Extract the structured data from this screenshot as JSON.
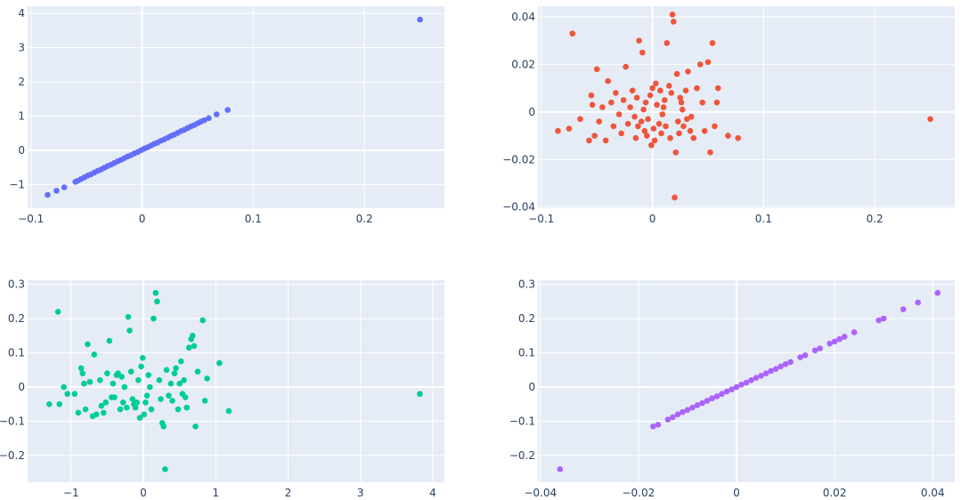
{
  "chart_data": [
    {
      "type": "scatter",
      "color": "#636efa",
      "xlim": [
        -0.103,
        0.272
      ],
      "ylim": [
        -1.69,
        4.21
      ],
      "x_ticks": [
        {
          "value": -0.1,
          "label": "−0.1"
        },
        {
          "value": 0,
          "label": "0"
        },
        {
          "value": 0.1,
          "label": "0.1"
        },
        {
          "value": 0.2,
          "label": "0.2"
        }
      ],
      "y_ticks": [
        {
          "value": -1,
          "label": "−1"
        },
        {
          "value": 0,
          "label": "0"
        },
        {
          "value": 1,
          "label": "1"
        },
        {
          "value": 2,
          "label": "2"
        },
        {
          "value": 3,
          "label": "3"
        },
        {
          "value": 4,
          "label": "4"
        }
      ],
      "x": [
        -0.085,
        -0.077,
        -0.07,
        -0.06,
        -0.058,
        -0.055,
        -0.052,
        -0.049,
        -0.046,
        -0.043,
        -0.04,
        -0.037,
        -0.034,
        -0.031,
        -0.028,
        -0.025,
        -0.022,
        -0.019,
        -0.016,
        -0.013,
        -0.01,
        -0.007,
        -0.004,
        -0.001,
        0.002,
        0.005,
        0.008,
        0.011,
        0.014,
        0.017,
        0.02,
        0.023,
        0.026,
        0.029,
        0.032,
        0.035,
        0.038,
        0.041,
        0.044,
        0.047,
        0.05,
        0.053,
        0.056,
        0.06,
        0.067,
        0.077,
        0.25
      ],
      "y": [
        -1.3,
        -1.18,
        -1.08,
        -0.92,
        -0.89,
        -0.84,
        -0.79,
        -0.74,
        -0.7,
        -0.65,
        -0.6,
        -0.56,
        -0.51,
        -0.46,
        -0.42,
        -0.37,
        -0.32,
        -0.28,
        -0.23,
        -0.18,
        -0.14,
        -0.09,
        -0.05,
        0.0,
        0.05,
        0.09,
        0.14,
        0.19,
        0.23,
        0.28,
        0.32,
        0.37,
        0.42,
        0.46,
        0.51,
        0.56,
        0.6,
        0.65,
        0.7,
        0.74,
        0.79,
        0.84,
        0.88,
        0.94,
        1.05,
        1.18,
        3.82
      ]
    },
    {
      "type": "scatter",
      "color": "#ef553b",
      "xlim": [
        -0.103,
        0.272
      ],
      "ylim": [
        -0.0405,
        0.0445
      ],
      "x_ticks": [
        {
          "value": -0.1,
          "label": "−0.1"
        },
        {
          "value": 0,
          "label": "0"
        },
        {
          "value": 0.1,
          "label": "0.1"
        },
        {
          "value": 0.2,
          "label": "0.2"
        }
      ],
      "y_ticks": [
        {
          "value": -0.04,
          "label": "−0.04"
        },
        {
          "value": -0.02,
          "label": "−0.02"
        },
        {
          "value": 0,
          "label": "0"
        },
        {
          "value": 0.02,
          "label": "0.02"
        },
        {
          "value": 0.04,
          "label": "0.04"
        }
      ],
      "x": [
        -0.085,
        -0.075,
        -0.072,
        -0.065,
        -0.057,
        -0.055,
        -0.054,
        -0.052,
        -0.05,
        -0.048,
        -0.045,
        -0.042,
        -0.04,
        -0.037,
        -0.035,
        -0.033,
        -0.03,
        -0.028,
        -0.026,
        -0.024,
        -0.022,
        -0.02,
        -0.018,
        -0.016,
        -0.015,
        -0.014,
        -0.013,
        -0.012,
        -0.01,
        -0.009,
        -0.008,
        -0.007,
        -0.006,
        -0.005,
        -0.004,
        -0.002,
        -0.001,
        0.0,
        0.001,
        0.002,
        0.003,
        0.004,
        0.006,
        0.007,
        0.008,
        0.009,
        0.01,
        0.011,
        0.012,
        0.013,
        0.015,
        0.016,
        0.017,
        0.018,
        0.019,
        0.02,
        0.021,
        0.022,
        0.023,
        0.024,
        0.025,
        0.026,
        0.027,
        0.028,
        0.03,
        0.031,
        0.032,
        0.034,
        0.035,
        0.037,
        0.04,
        0.043,
        0.045,
        0.047,
        0.05,
        0.052,
        0.054,
        0.056,
        0.058,
        0.059,
        0.068,
        0.077,
        0.25
      ],
      "y": [
        -0.008,
        -0.007,
        0.033,
        -0.003,
        -0.012,
        0.007,
        0.003,
        -0.01,
        0.018,
        -0.004,
        0.002,
        -0.012,
        0.013,
        0.004,
        -0.006,
        0.008,
        -0.001,
        -0.009,
        0.005,
        0.019,
        -0.005,
        0.002,
        0.009,
        -0.002,
        -0.011,
        0.006,
        -0.006,
        0.03,
        -0.004,
        0.025,
        0.001,
        -0.008,
        0.004,
        -0.01,
        -0.003,
        0.007,
        -0.014,
        0.01,
        -0.007,
        -0.012,
        0.012,
        0.003,
        -0.005,
        0.009,
        -0.009,
        -0.001,
        0.002,
        0.005,
        -0.006,
        0.029,
        0.011,
        -0.011,
        0.008,
        0.041,
        0.038,
        -0.036,
        -0.017,
        0.016,
        -0.004,
        -0.009,
        0.006,
        0.004,
        0.001,
        -0.006,
        0.009,
        -0.003,
        0.017,
        -0.008,
        -0.002,
        -0.011,
        0.01,
        0.02,
        0.004,
        -0.008,
        0.021,
        -0.017,
        0.029,
        -0.006,
        0.004,
        0.01,
        -0.01,
        -0.011,
        -0.003
      ]
    },
    {
      "type": "scatter",
      "color": "#00cc96",
      "xlim": [
        -1.6,
        4.16
      ],
      "ylim": [
        -0.278,
        0.312
      ],
      "x_ticks": [
        {
          "value": -1,
          "label": "−1"
        },
        {
          "value": 0,
          "label": "0"
        },
        {
          "value": 1,
          "label": "1"
        },
        {
          "value": 2,
          "label": "2"
        },
        {
          "value": 3,
          "label": "3"
        },
        {
          "value": 4,
          "label": "4"
        }
      ],
      "y_ticks": [
        {
          "value": -0.2,
          "label": "−0.2"
        },
        {
          "value": -0.1,
          "label": "−0.1"
        },
        {
          "value": 0,
          "label": "0"
        },
        {
          "value": 0.1,
          "label": "0.1"
        },
        {
          "value": 0.2,
          "label": "0.2"
        },
        {
          "value": 0.3,
          "label": "0.3"
        }
      ],
      "x": [
        -1.3,
        -1.18,
        -1.16,
        -1.1,
        -1.05,
        -0.95,
        -0.9,
        -0.86,
        -0.84,
        -0.82,
        -0.8,
        -0.77,
        -0.74,
        -0.7,
        -0.68,
        -0.65,
        -0.6,
        -0.58,
        -0.55,
        -0.52,
        -0.5,
        -0.47,
        -0.44,
        -0.42,
        -0.4,
        -0.37,
        -0.35,
        -0.32,
        -0.3,
        -0.28,
        -0.26,
        -0.23,
        -0.21,
        -0.19,
        -0.17,
        -0.15,
        -0.13,
        -0.11,
        -0.09,
        -0.07,
        -0.05,
        -0.03,
        -0.01,
        0.01,
        0.03,
        0.05,
        0.07,
        0.09,
        0.11,
        0.14,
        0.17,
        0.19,
        0.22,
        0.24,
        0.26,
        0.28,
        0.3,
        0.32,
        0.35,
        0.38,
        0.4,
        0.43,
        0.45,
        0.48,
        0.5,
        0.52,
        0.54,
        0.56,
        0.58,
        0.6,
        0.63,
        0.66,
        0.68,
        0.7,
        0.72,
        0.75,
        0.82,
        0.85,
        0.88,
        1.05,
        1.18,
        3.82
      ],
      "y": [
        -0.05,
        0.22,
        -0.05,
        0.0,
        -0.02,
        -0.02,
        -0.075,
        0.055,
        0.04,
        0.01,
        -0.065,
        0.125,
        0.015,
        -0.085,
        0.095,
        -0.08,
        0.02,
        -0.055,
        -0.075,
        -0.045,
        0.04,
        0.135,
        -0.03,
        0.01,
        -0.03,
        0.035,
        0.04,
        -0.065,
        0.03,
        -0.045,
        0.0,
        -0.06,
        0.205,
        0.165,
        0.045,
        -0.035,
        -0.05,
        -0.06,
        -0.045,
        0.02,
        -0.09,
        0.06,
        0.085,
        -0.08,
        -0.045,
        -0.025,
        0.035,
        0.0,
        -0.065,
        0.2,
        0.275,
        0.25,
        0.02,
        -0.035,
        -0.105,
        -0.115,
        -0.24,
        0.05,
        -0.025,
        0.01,
        -0.04,
        0.04,
        0.055,
        -0.065,
        0.01,
        0.075,
        -0.02,
        0.02,
        -0.03,
        -0.06,
        0.115,
        0.14,
        0.15,
        0.12,
        -0.115,
        0.045,
        0.195,
        -0.04,
        0.025,
        0.07,
        -0.07,
        -0.02
      ]
    },
    {
      "type": "scatter",
      "color": "#ab63fa",
      "xlim": [
        -0.0405,
        0.0445
      ],
      "ylim": [
        -0.278,
        0.312
      ],
      "x_ticks": [
        {
          "value": -0.04,
          "label": "−0.04"
        },
        {
          "value": -0.02,
          "label": "−0.02"
        },
        {
          "value": 0,
          "label": "0"
        },
        {
          "value": 0.02,
          "label": "0.02"
        },
        {
          "value": 0.04,
          "label": "0.04"
        }
      ],
      "y_ticks": [
        {
          "value": -0.2,
          "label": "−0.2"
        },
        {
          "value": -0.1,
          "label": "−0.1"
        },
        {
          "value": 0,
          "label": "0"
        },
        {
          "value": 0.1,
          "label": "0.1"
        },
        {
          "value": 0.2,
          "label": "0.2"
        },
        {
          "value": 0.3,
          "label": "0.3"
        }
      ],
      "x": [
        -0.036,
        -0.017,
        -0.016,
        -0.014,
        -0.013,
        -0.012,
        -0.011,
        -0.01,
        -0.009,
        -0.008,
        -0.007,
        -0.006,
        -0.005,
        -0.004,
        -0.003,
        -0.002,
        -0.001,
        0.0,
        0.001,
        0.002,
        0.003,
        0.004,
        0.005,
        0.006,
        0.007,
        0.008,
        0.009,
        0.01,
        0.011,
        0.013,
        0.014,
        0.016,
        0.017,
        0.019,
        0.02,
        0.021,
        0.022,
        0.024,
        0.029,
        0.03,
        0.034,
        0.037,
        0.041
      ],
      "y": [
        -0.24,
        -0.115,
        -0.11,
        -0.095,
        -0.088,
        -0.08,
        -0.073,
        -0.067,
        -0.06,
        -0.053,
        -0.047,
        -0.04,
        -0.033,
        -0.027,
        -0.02,
        -0.013,
        -0.007,
        0.0,
        0.007,
        0.013,
        0.02,
        0.027,
        0.033,
        0.04,
        0.047,
        0.053,
        0.06,
        0.067,
        0.073,
        0.087,
        0.093,
        0.107,
        0.113,
        0.127,
        0.133,
        0.14,
        0.147,
        0.16,
        0.195,
        0.2,
        0.227,
        0.247,
        0.275
      ]
    }
  ]
}
